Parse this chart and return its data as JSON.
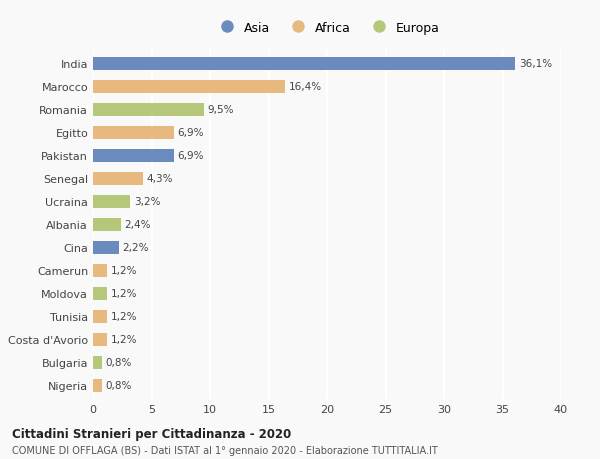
{
  "countries": [
    "India",
    "Marocco",
    "Romania",
    "Egitto",
    "Pakistan",
    "Senegal",
    "Ucraina",
    "Albania",
    "Cina",
    "Camerun",
    "Moldova",
    "Tunisia",
    "Costa d'Avorio",
    "Bulgaria",
    "Nigeria"
  ],
  "values": [
    36.1,
    16.4,
    9.5,
    6.9,
    6.9,
    4.3,
    3.2,
    2.4,
    2.2,
    1.2,
    1.2,
    1.2,
    1.2,
    0.8,
    0.8
  ],
  "labels": [
    "36,1%",
    "16,4%",
    "9,5%",
    "6,9%",
    "6,9%",
    "4,3%",
    "3,2%",
    "2,4%",
    "2,2%",
    "1,2%",
    "1,2%",
    "1,2%",
    "1,2%",
    "0,8%",
    "0,8%"
  ],
  "continents": [
    "Asia",
    "Africa",
    "Europa",
    "Africa",
    "Asia",
    "Africa",
    "Europa",
    "Europa",
    "Asia",
    "Africa",
    "Europa",
    "Africa",
    "Africa",
    "Europa",
    "Africa"
  ],
  "colors": {
    "Asia": "#6b8bbf",
    "Africa": "#e8b97e",
    "Europa": "#b5c87a"
  },
  "legend_labels": [
    "Asia",
    "Africa",
    "Europa"
  ],
  "legend_colors": [
    "#6b8bbf",
    "#e8b97e",
    "#b5c87a"
  ],
  "title": "Cittadini Stranieri per Cittadinanza - 2020",
  "subtitle": "COMUNE DI OFFLAGA (BS) - Dati ISTAT al 1° gennaio 2020 - Elaborazione TUTTITALIA.IT",
  "xlim": [
    0,
    40
  ],
  "xticks": [
    0,
    5,
    10,
    15,
    20,
    25,
    30,
    35,
    40
  ],
  "background_color": "#f9f9f9",
  "grid_color": "#ffffff",
  "bar_height": 0.6
}
